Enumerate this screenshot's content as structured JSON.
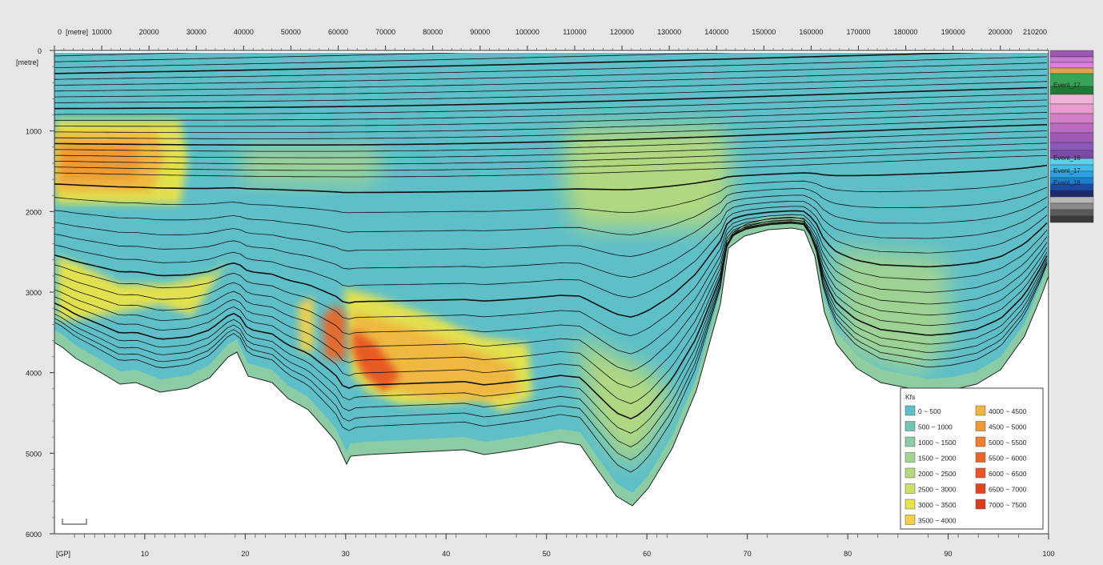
{
  "chart_data": {
    "type": "area",
    "title": "",
    "x_top": {
      "unit_label": "[metre]",
      "ticks": [
        0,
        10000,
        20000,
        30000,
        40000,
        50000,
        60000,
        70000,
        80000,
        90000,
        100000,
        110000,
        120000,
        130000,
        140000,
        150000,
        160000,
        170000,
        180000,
        190000,
        200000
      ],
      "end_label": "210200",
      "range": [
        0,
        210200
      ]
    },
    "x_bottom": {
      "unit_label": "[GP]",
      "ticks": [
        10,
        20,
        30,
        40,
        50,
        60,
        70,
        80,
        90,
        100
      ],
      "range": [
        1,
        100
      ]
    },
    "y": {
      "unit_label": "[metre]",
      "ticks": [
        0,
        1000,
        2000,
        3000,
        4000,
        5000,
        6000
      ],
      "range": [
        0,
        6000
      ],
      "inverted": true
    },
    "legend": {
      "title": "Kfs",
      "placement": "bottom-right",
      "entries": [
        {
          "label": "0 ~ 500",
          "color": "#5fbfc8"
        },
        {
          "label": "500 ~ 1000",
          "color": "#72c3b8"
        },
        {
          "label": "1000 ~ 1500",
          "color": "#8ccca4"
        },
        {
          "label": "1500 ~ 2000",
          "color": "#a2d392"
        },
        {
          "label": "2000 ~ 2500",
          "color": "#b6d97d"
        },
        {
          "label": "2500 ~ 3000",
          "color": "#cfe06a"
        },
        {
          "label": "3000 ~ 3500",
          "color": "#e8e24a"
        },
        {
          "label": "3500 ~ 4000",
          "color": "#f2d04a"
        },
        {
          "label": "4000 ~ 4500",
          "color": "#f0b640"
        },
        {
          "label": "4500 ~ 5000",
          "color": "#ee9a36"
        },
        {
          "label": "5000 ~ 5500",
          "color": "#ec7e2e"
        },
        {
          "label": "5500 ~ 6000",
          "color": "#ea6628"
        },
        {
          "label": "6000 ~ 6500",
          "color": "#e75424"
        },
        {
          "label": "6500 ~ 7000",
          "color": "#e24420"
        },
        {
          "label": "7000 ~ 7500",
          "color": "#dc3a1e"
        }
      ]
    },
    "strip_labels": [
      {
        "label": "Event_17",
        "color": "#2e8a44"
      },
      {
        "label": "Event_16",
        "color": "#8a58b8"
      },
      {
        "label": "Event_17",
        "color": "#7a4aa8"
      },
      {
        "label": "Event_18",
        "color": "#8a58b8"
      }
    ],
    "strip_colors": [
      "#9d57b3",
      "#c77ad1",
      "#e07fd9",
      "#d9a84a",
      "#3aa35a",
      "#1f7a36",
      "#efb3d8",
      "#e79ccf",
      "#d27ec6",
      "#b86bc0",
      "#a159b6",
      "#8a58b8",
      "#7a4aa8",
      "#5fd0e8",
      "#3fbde8",
      "#2aa1e0",
      "#1c7fd0",
      "#1b4aa8",
      "#1a2a6a",
      "#b8b8b8",
      "#8a8a8a",
      "#5a5a5a",
      "#3a3a3a"
    ]
  }
}
